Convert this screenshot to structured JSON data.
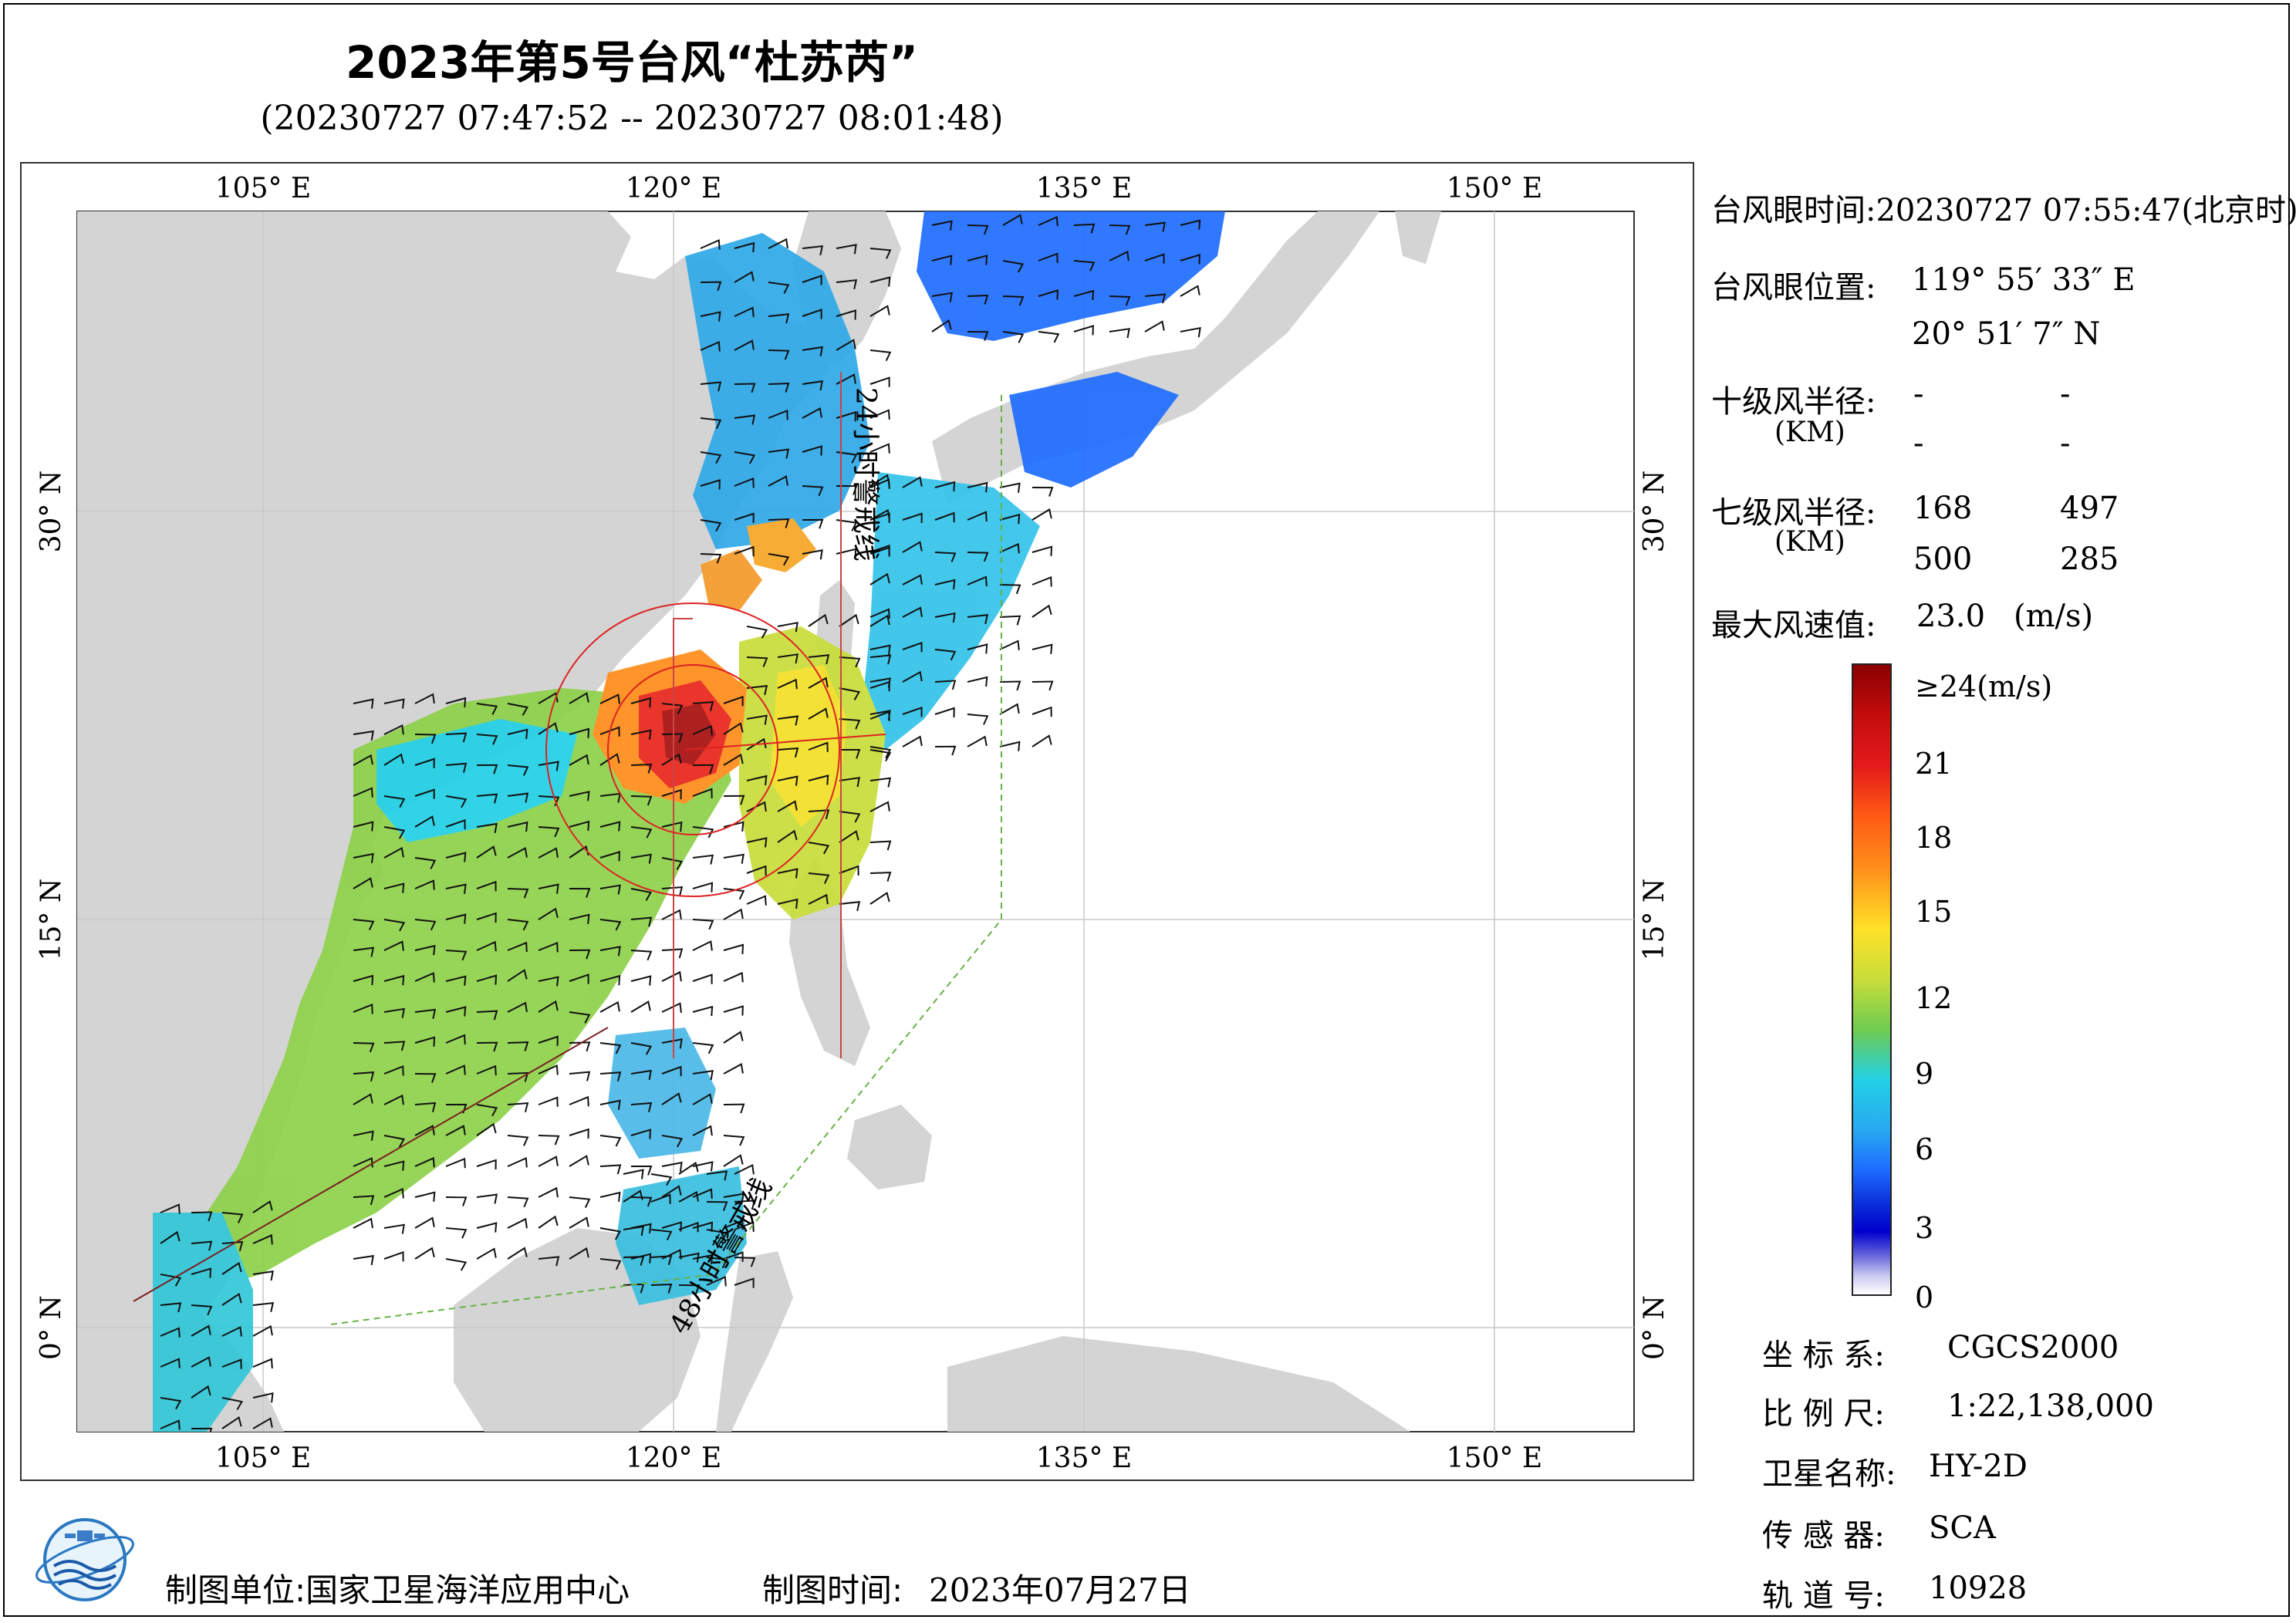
{
  "title": "2023年第5号台风“杜苏芮”",
  "subtitle": "(20230727 07:47:52 -- 20230727 08:01:48)",
  "axes": {
    "top_labels": [
      "105° E",
      "120° E",
      "135° E",
      "150° E"
    ],
    "bottom_labels": [
      "105° E",
      "120° E",
      "135° E",
      "150° E"
    ],
    "left_labels": [
      "30° N",
      "15° N",
      "0° N"
    ],
    "right_labels": [
      "30° N",
      "15° N",
      "0° N"
    ]
  },
  "warning_lines": {
    "line_24h": "24小时警戒线",
    "line_48h": "48小时警戒线"
  },
  "info": {
    "eye_time_label": "台风眼时间:",
    "eye_time_value": "20230727 07:55:47(北京时)",
    "eye_pos_label": "台风眼位置:",
    "eye_lon": "119° 55′ 33″ E",
    "eye_lat": "20° 51′ 7″ N",
    "r10_label": "十级风半径:",
    "r10_unit": "(KM)",
    "r10_values": [
      "-",
      "-",
      "-",
      "-"
    ],
    "r7_label": "七级风半径:",
    "r7_unit": "(KM)",
    "r7_values": [
      "168",
      "497",
      "500",
      "285"
    ],
    "max_label": "最大风速值:",
    "max_value": "23.0",
    "max_unit": "(m/s)"
  },
  "colorbar": {
    "labels": [
      "≥24(m/s)",
      "21",
      "18",
      "15",
      "12",
      "9",
      "6",
      "3",
      "0"
    ],
    "colors": [
      "#8b0000",
      "#e41a1c",
      "#ff7f00",
      "#ffd700",
      "#9acd32",
      "#00e5ee",
      "#1e6eff",
      "#0000cd",
      "#ffffff"
    ]
  },
  "meta": {
    "crs_label": "坐 标 系:",
    "crs_value": "CGCS2000",
    "scale_label": "比 例 尺:",
    "scale_value": "1:22,138,000",
    "sat_label": "卫星名称:",
    "sat_value": "HY-2D",
    "sensor_label": "传 感 器:",
    "sensor_value": "SCA",
    "orbit_label": "轨 道 号:",
    "orbit_value": "10928"
  },
  "footer": {
    "producer_label": "制图单位:",
    "producer_value": "国家卫星海洋应用中心",
    "date_label": "制图时间:",
    "date_value": "2023年07月27日"
  },
  "map": {
    "typhoon_eye": {
      "lon": 119.93,
      "lat": 20.85
    },
    "lon_range": [
      98,
      155
    ],
    "lat_range": [
      -4,
      41
    ]
  }
}
